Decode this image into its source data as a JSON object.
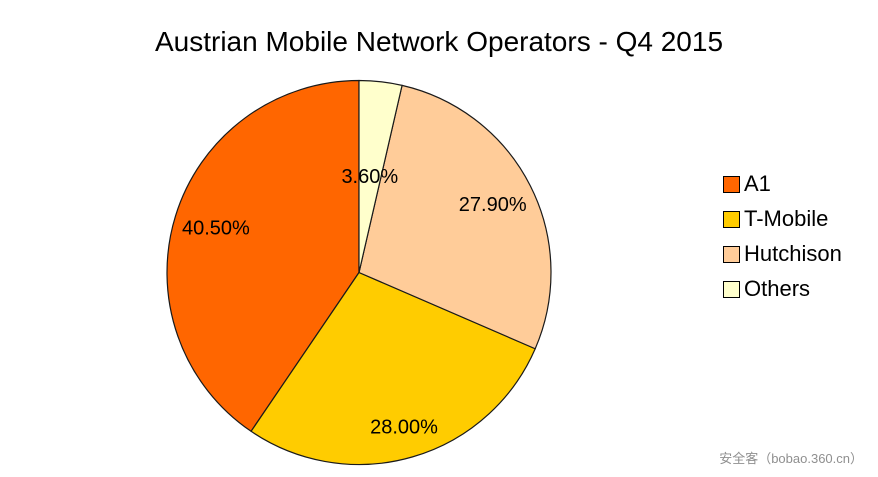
{
  "chart_data": {
    "type": "pie",
    "title": "Austrian Mobile Network Operators - Q4 2015",
    "labels": [
      "A1",
      "T-Mobile",
      "Hutchison",
      "Others"
    ],
    "values": [
      40.5,
      28.0,
      27.9,
      3.6
    ],
    "value_labels": [
      "40.50%",
      "28.00%",
      "27.90%",
      "3.60%"
    ],
    "colors": [
      "#ff6600",
      "#ffcc00",
      "#ffcc99",
      "#ffffcc"
    ],
    "stroke_color": "#1a1a1a",
    "start_angle": 90,
    "direction": "counterclockwise",
    "legend_position": "right",
    "label_distance": [
      0.78,
      0.84,
      0.78,
      0.5
    ]
  },
  "watermark": {
    "text": "安全客（bobao.360.cn）"
  }
}
